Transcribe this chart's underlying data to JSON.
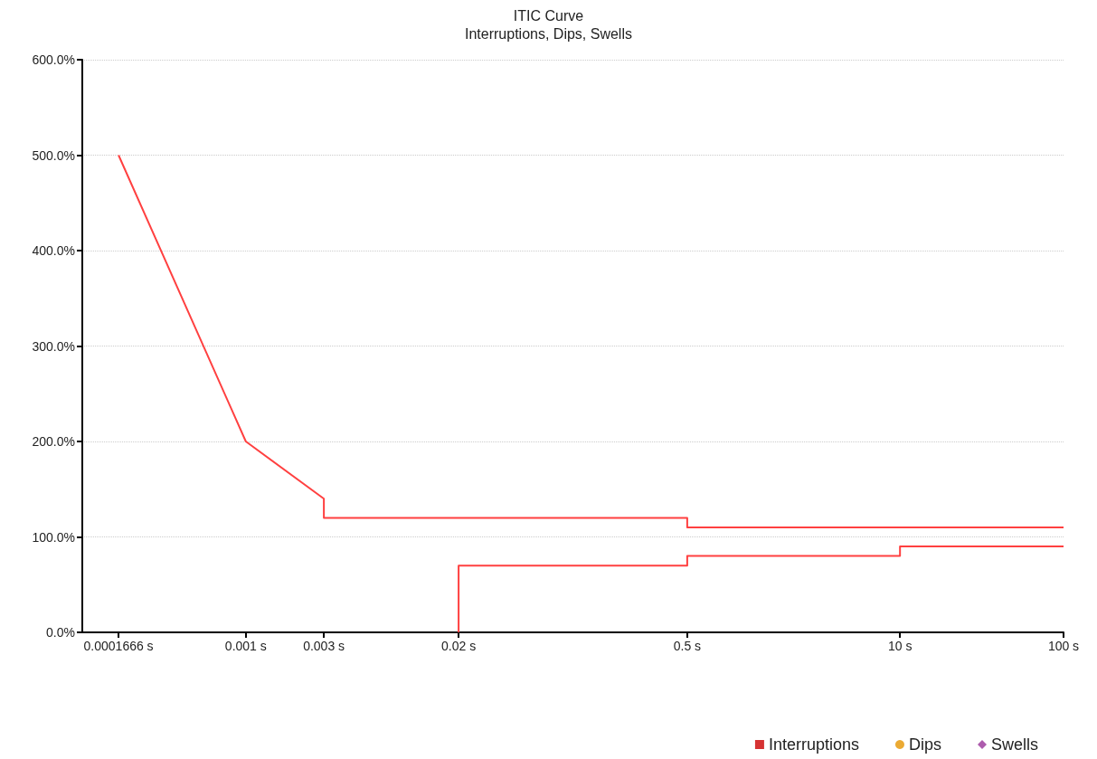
{
  "chart_data": {
    "type": "line",
    "title": "ITIC Curve",
    "subtitle": "Interruptions, Dips, Swells",
    "log": "x",
    "grid": "y",
    "legend": "bottom right",
    "marker": "none",
    "line_style": "solid",
    "xlim": [
      0.0001,
      100
    ],
    "xticks": [
      {
        "value": 0.0001666,
        "label": "0.0001666 s"
      },
      {
        "value": 0.001,
        "label": "0.001 s"
      },
      {
        "value": 0.003,
        "label": "0.003 s"
      },
      {
        "value": 0.02,
        "label": "0.02 s"
      },
      {
        "value": 0.5,
        "label": "0.5 s"
      },
      {
        "value": 10,
        "label": "10 s"
      },
      {
        "value": 100,
        "label": "100 s"
      }
    ],
    "ylim": [
      0,
      600
    ],
    "yticks": [
      {
        "value": 0,
        "label": "0.0%"
      },
      {
        "value": 100,
        "label": "100.0%"
      },
      {
        "value": 200,
        "label": "200.0%"
      },
      {
        "value": 300,
        "label": "300.0%"
      },
      {
        "value": 400,
        "label": "400.0%"
      },
      {
        "value": 500,
        "label": "500.0%"
      },
      {
        "value": 600,
        "label": "600.0%"
      }
    ],
    "series": [
      {
        "color": "#ff4040",
        "x": [
          0.0001666,
          0.001,
          0.003,
          0.003,
          0.5,
          0.5,
          100
        ],
        "values": [
          500,
          200,
          140,
          120,
          120,
          110,
          110
        ]
      },
      {
        "color": "#ff4040",
        "x": [
          0.02,
          0.02,
          0.5,
          0.5,
          10,
          10,
          100
        ],
        "values": [
          0,
          70,
          70,
          80,
          80,
          90,
          90
        ]
      },
      {
        "name": "Interruptions",
        "type": "scatter",
        "marker": "square",
        "color": "#cc0000"
      },
      {
        "name": "Dips",
        "type": "scatter",
        "marker": "circle",
        "color": "#e69500"
      },
      {
        "name": "Swells",
        "type": "scatter",
        "marker": "diamond",
        "color": "#993399"
      }
    ]
  }
}
